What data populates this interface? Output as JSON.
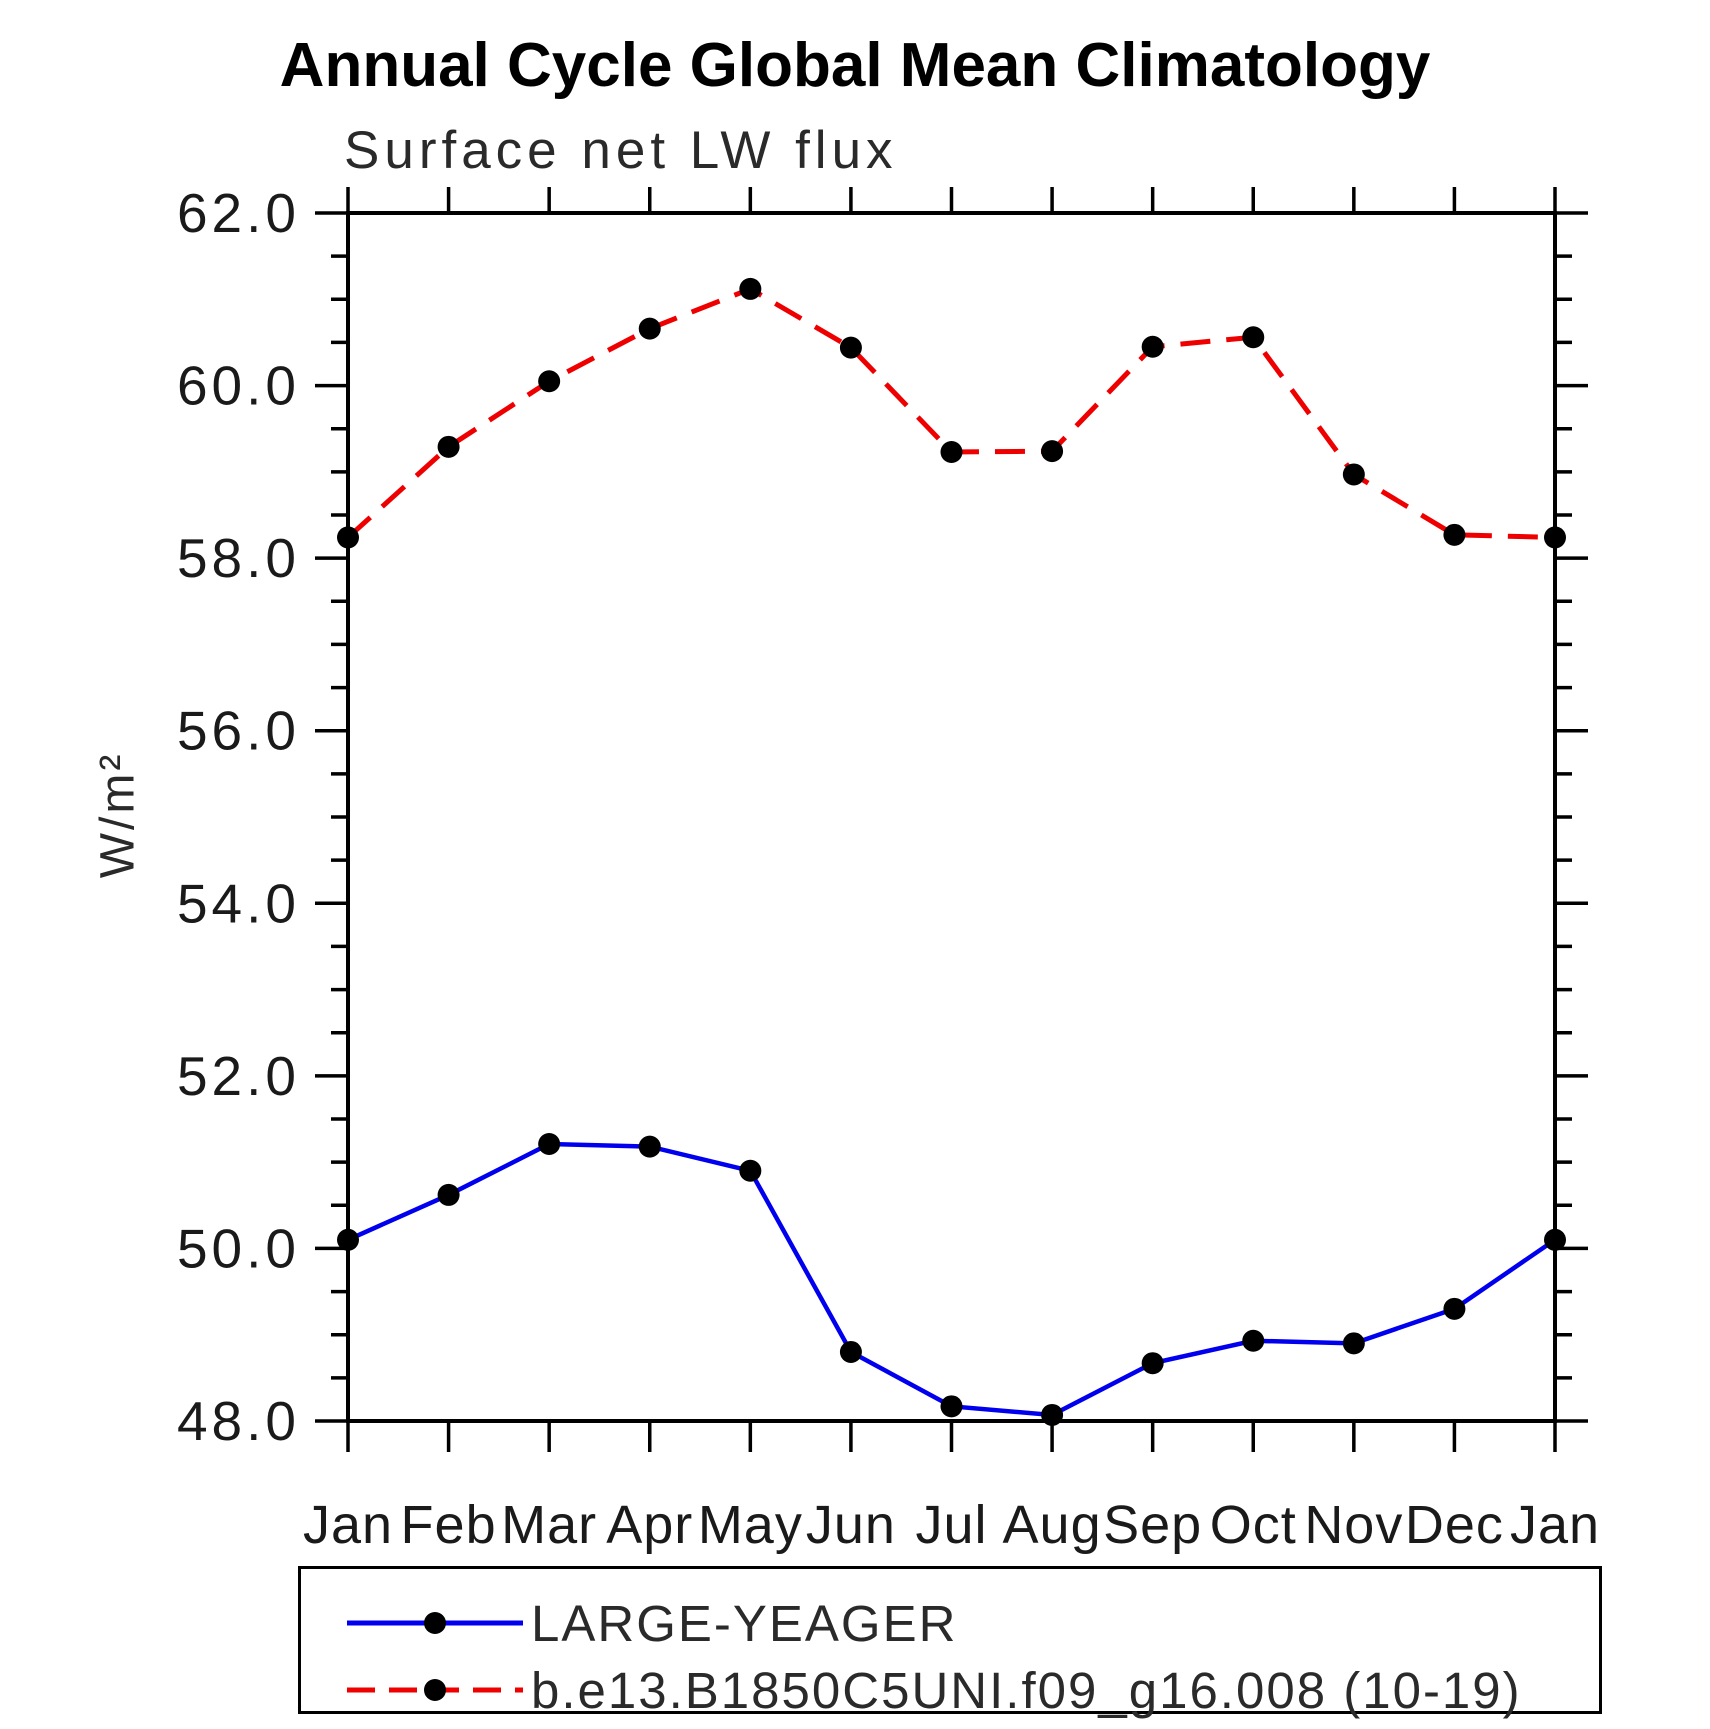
{
  "chart_data": {
    "type": "line",
    "title": "Annual Cycle Global Mean Climatology",
    "subtitle": "Surface net LW flux",
    "ylabel": "W/m²",
    "xlabel": "",
    "x_categories": [
      "Jan",
      "Feb",
      "Mar",
      "Apr",
      "May",
      "Jun",
      "Jul",
      "Aug",
      "Sep",
      "Oct",
      "Nov",
      "Dec",
      "Jan"
    ],
    "ylim": [
      48.0,
      62.0
    ],
    "y_major_tick_step": 2.0,
    "y_minor_tick_step": 0.5,
    "y_tick_labels": [
      "48.0",
      "50.0",
      "52.0",
      "54.0",
      "56.0",
      "58.0",
      "60.0",
      "62.0"
    ],
    "grid": false,
    "legend_position": "bottom",
    "axis_color": "#000000",
    "series": [
      {
        "name": "LARGE-YEAGER",
        "color": "#0000ee",
        "line_style": "solid",
        "marker": "circle",
        "marker_color": "#000000",
        "values": [
          50.1,
          50.62,
          51.21,
          51.18,
          50.9,
          48.8,
          48.17,
          48.07,
          48.67,
          48.93,
          48.9,
          49.3,
          50.1
        ]
      },
      {
        "name": "b.e13.B1850C5UNI.f09_g16.008 (10-19)",
        "color": "#ee0000",
        "line_style": "dashed",
        "marker": "circle",
        "marker_color": "#000000",
        "values": [
          58.24,
          59.29,
          60.05,
          60.66,
          61.12,
          60.44,
          59.23,
          59.24,
          60.45,
          60.56,
          58.97,
          58.27,
          58.24
        ]
      }
    ]
  }
}
